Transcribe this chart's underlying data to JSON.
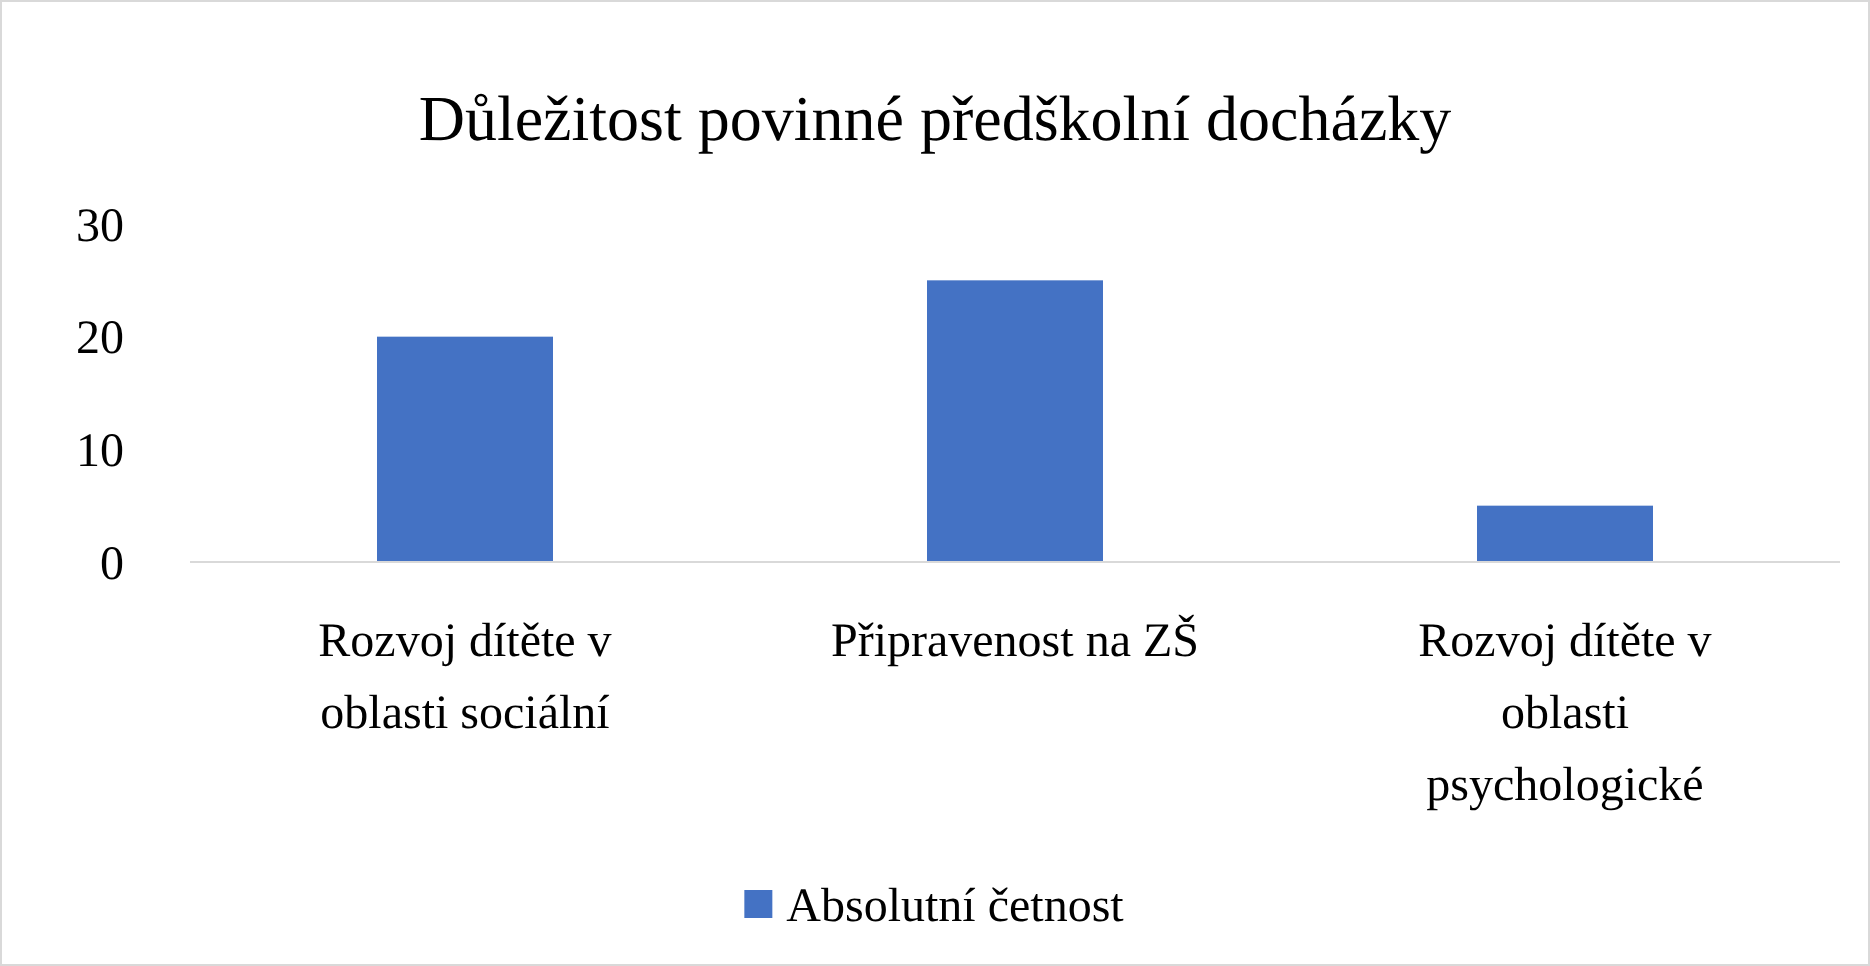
{
  "chart_data": {
    "type": "bar",
    "title": "Důležitost povinné předškolní docházky",
    "categories": [
      "Rozvoj dítěte v oblasti sociální",
      "Připravenost na ZŠ",
      "Rozvoj dítěte v oblasti psychologické"
    ],
    "series": [
      {
        "name": "Absolutní četnost",
        "color": "#4472c4",
        "values": [
          20,
          25,
          5
        ]
      }
    ],
    "ylim": [
      0,
      30
    ],
    "yticks": [
      0,
      10,
      20,
      30
    ],
    "grid": false,
    "legend": "bottom"
  }
}
